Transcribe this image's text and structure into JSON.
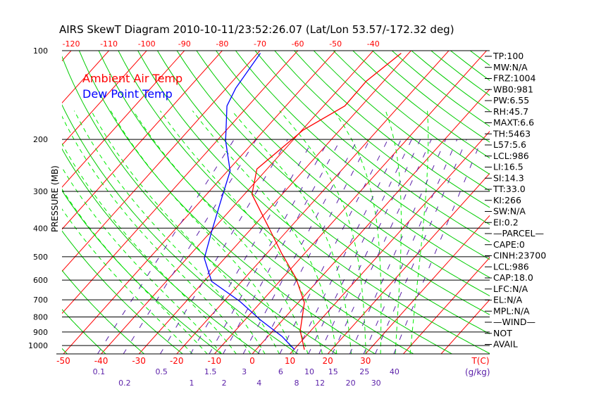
{
  "chart_data": {
    "type": "line",
    "title": "AIRS SkewT Diagram 2010-10-11/23:52:26.07 (Lat/Lon 53.57/-172.32 deg)",
    "ylabel": "PRESSURE (MB)",
    "xlabel": "T(C)",
    "mixing_ratio_unit": "(g/kg)",
    "ylim": [
      1050,
      100
    ],
    "pressure_ticks": [
      100,
      200,
      300,
      400,
      500,
      600,
      700,
      800,
      900,
      1000
    ],
    "top_temp_ticks": [
      -120,
      -110,
      -100,
      -90,
      -80,
      -70,
      -60,
      -50,
      -40
    ],
    "bottom_temp_ticks": [
      -50,
      -40,
      -30,
      -20,
      -10,
      0,
      10,
      20,
      30
    ],
    "mixing_ratio_ticks": [
      "0.1",
      "0.2",
      "0.5",
      "1",
      "1.5",
      "2",
      "3",
      "4",
      "6",
      "8",
      "10",
      "12",
      "15",
      "20",
      "25",
      "30",
      "40"
    ],
    "legend": [
      {
        "label": "Ambient Air Temp",
        "color": "#ff0000"
      },
      {
        "label": "Dew Point Temp",
        "color": "#0000ff"
      }
    ],
    "legend_placement": "top-left",
    "series": [
      {
        "name": "Ambient Air Temp",
        "color": "#ff0000",
        "pressure": [
          1033,
          891,
          715,
          590,
          487,
          391,
          307,
          252,
          186,
          154,
          127,
          102
        ],
        "temperature": [
          12.8,
          7.2,
          1.6,
          -6.5,
          -16.1,
          -26.5,
          -38.0,
          -42.7,
          -39.7,
          -34.4,
          -34.6,
          -32.0
        ]
      },
      {
        "name": "Dew Point Temp",
        "color": "#0000ff",
        "pressure": [
          1033,
          931,
          820,
          707,
          606,
          506,
          413,
          331,
          256,
          202,
          154,
          134,
          102
        ],
        "temperature": [
          10.2,
          3.7,
          -5.8,
          -15.9,
          -28.0,
          -35.4,
          -39.7,
          -44.2,
          -49.3,
          -57.7,
          -65.6,
          -67.5,
          -69.3
        ]
      }
    ],
    "colors": {
      "isotherm": "#ff0000",
      "dry_adiabat": "#00cc00",
      "moist_adiabat": "#00ee00",
      "mixing_ratio": "#5a1fa8",
      "axis": "#000000"
    }
  },
  "indices": [
    "TP:100",
    "MW:N/A",
    "FRZ:1004",
    "WB0:981",
    "PW:6.55",
    "RH:45.7",
    "MAXT:6.6",
    "TH:5463",
    "L57:5.6",
    "LCL:986",
    "LI:16.5",
    "SI:14.3",
    "TT:33.0",
    "KI:266",
    "SW:N/A",
    "EI:0.2",
    "—PARCEL—",
    "CAPE:0",
    "CINH:23700",
    "LCL:986",
    "CAP:18.0",
    "LFC:N/A",
    "EL:N/A",
    "MPL:N/A",
    "—WIND—",
    "NOT",
    "AVAIL"
  ]
}
